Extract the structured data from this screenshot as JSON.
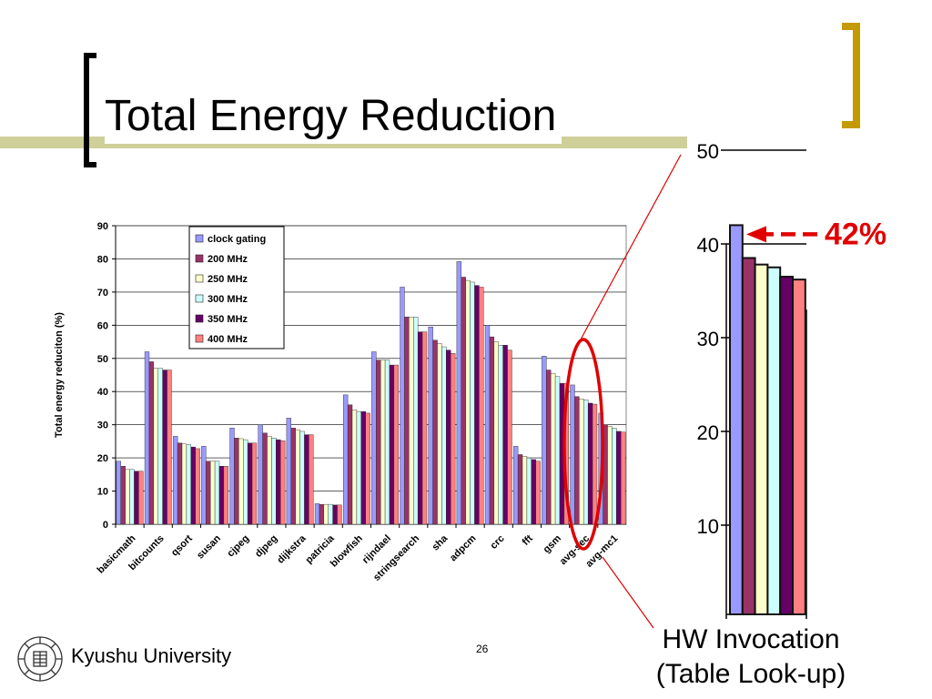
{
  "slide": {
    "title": "Total Energy Reduction",
    "footer": "Kyushu University",
    "page_number": "26",
    "caption_line1": "HW Invocation",
    "caption_line2": "(Table Look-up)",
    "callout": "42%",
    "colors": {
      "title_bar": "#cfcf99",
      "right_bracket": "#c49a00",
      "highlight": "#e00000"
    }
  },
  "chart_data": [
    {
      "type": "bar",
      "ylabel": "Total energy reduciton (%)",
      "xlabel": "",
      "ylim": [
        0,
        90
      ],
      "yticks": [
        "0",
        "10",
        "20",
        "30",
        "40",
        "50",
        "60",
        "70",
        "80",
        "90"
      ],
      "grid": true,
      "legend_position": "top-center",
      "categories": [
        "basicmath",
        "bitcounts",
        "qsort",
        "susan",
        "cjpeg",
        "djpeg",
        "dijkstra",
        "patricia",
        "blowfish",
        "rijndael",
        "stringsearch",
        "sha",
        "adpcm",
        "crc",
        "fft",
        "gsm",
        "avg-sec",
        "avg-mc1"
      ],
      "series": [
        {
          "name": "clock gating",
          "color": "#9999ff",
          "values": [
            19,
            52,
            26.5,
            23.5,
            29,
            30,
            32,
            6.2,
            39,
            52,
            71.5,
            59.5,
            79.2,
            60,
            23.5,
            50.7,
            42,
            33.5
          ]
        },
        {
          "name": "200 MHz",
          "color": "#993366",
          "values": [
            17.5,
            49,
            24.5,
            19,
            26,
            27.5,
            29,
            6,
            36,
            49.5,
            62.5,
            55.5,
            74.5,
            56.5,
            21,
            46.5,
            38.5,
            30
          ]
        },
        {
          "name": "250 MHz",
          "color": "#ffffcc",
          "values": [
            16.5,
            47,
            24.2,
            19,
            25.8,
            26.5,
            28.5,
            6,
            34.5,
            49.5,
            62.5,
            54.5,
            73.5,
            55,
            20.5,
            45.5,
            37.8,
            29.5
          ]
        },
        {
          "name": "300 MHz",
          "color": "#ccffff",
          "values": [
            16.5,
            47,
            24,
            19,
            25.5,
            26,
            28,
            6,
            34,
            49.5,
            62.5,
            53.5,
            73,
            54,
            20,
            44.5,
            37.5,
            29
          ]
        },
        {
          "name": "350 MHz",
          "color": "#660066",
          "values": [
            16,
            46.5,
            23.3,
            17.5,
            24.5,
            25.5,
            27,
            5.8,
            34,
            48,
            58,
            52.5,
            72,
            54,
            19.5,
            42.5,
            36.5,
            28
          ]
        },
        {
          "name": "400 MHz",
          "color": "#ff8080",
          "values": [
            16,
            46.5,
            22.8,
            17.5,
            24.5,
            25.2,
            27,
            5.8,
            33.5,
            48,
            58,
            51.5,
            71.5,
            52.5,
            19,
            42.5,
            36.2,
            27.8
          ]
        }
      ]
    },
    {
      "type": "bar",
      "ylabel": "",
      "xlabel": "",
      "ylim": [
        0,
        50
      ],
      "yticks": [
        "10",
        "20",
        "30",
        "40",
        "50"
      ],
      "grid": true,
      "categories": [
        "avg-sec"
      ],
      "series": [
        {
          "name": "clock gating",
          "color": "#9999ff",
          "values": [
            42
          ]
        },
        {
          "name": "200 MHz",
          "color": "#993366",
          "values": [
            38.5
          ]
        },
        {
          "name": "250 MHz",
          "color": "#ffffcc",
          "values": [
            37.8
          ]
        },
        {
          "name": "300 MHz",
          "color": "#ccffff",
          "values": [
            37.5
          ]
        },
        {
          "name": "350 MHz",
          "color": "#660066",
          "values": [
            36.5
          ]
        },
        {
          "name": "400 MHz",
          "color": "#ff8080",
          "values": [
            36.2
          ]
        }
      ]
    }
  ]
}
